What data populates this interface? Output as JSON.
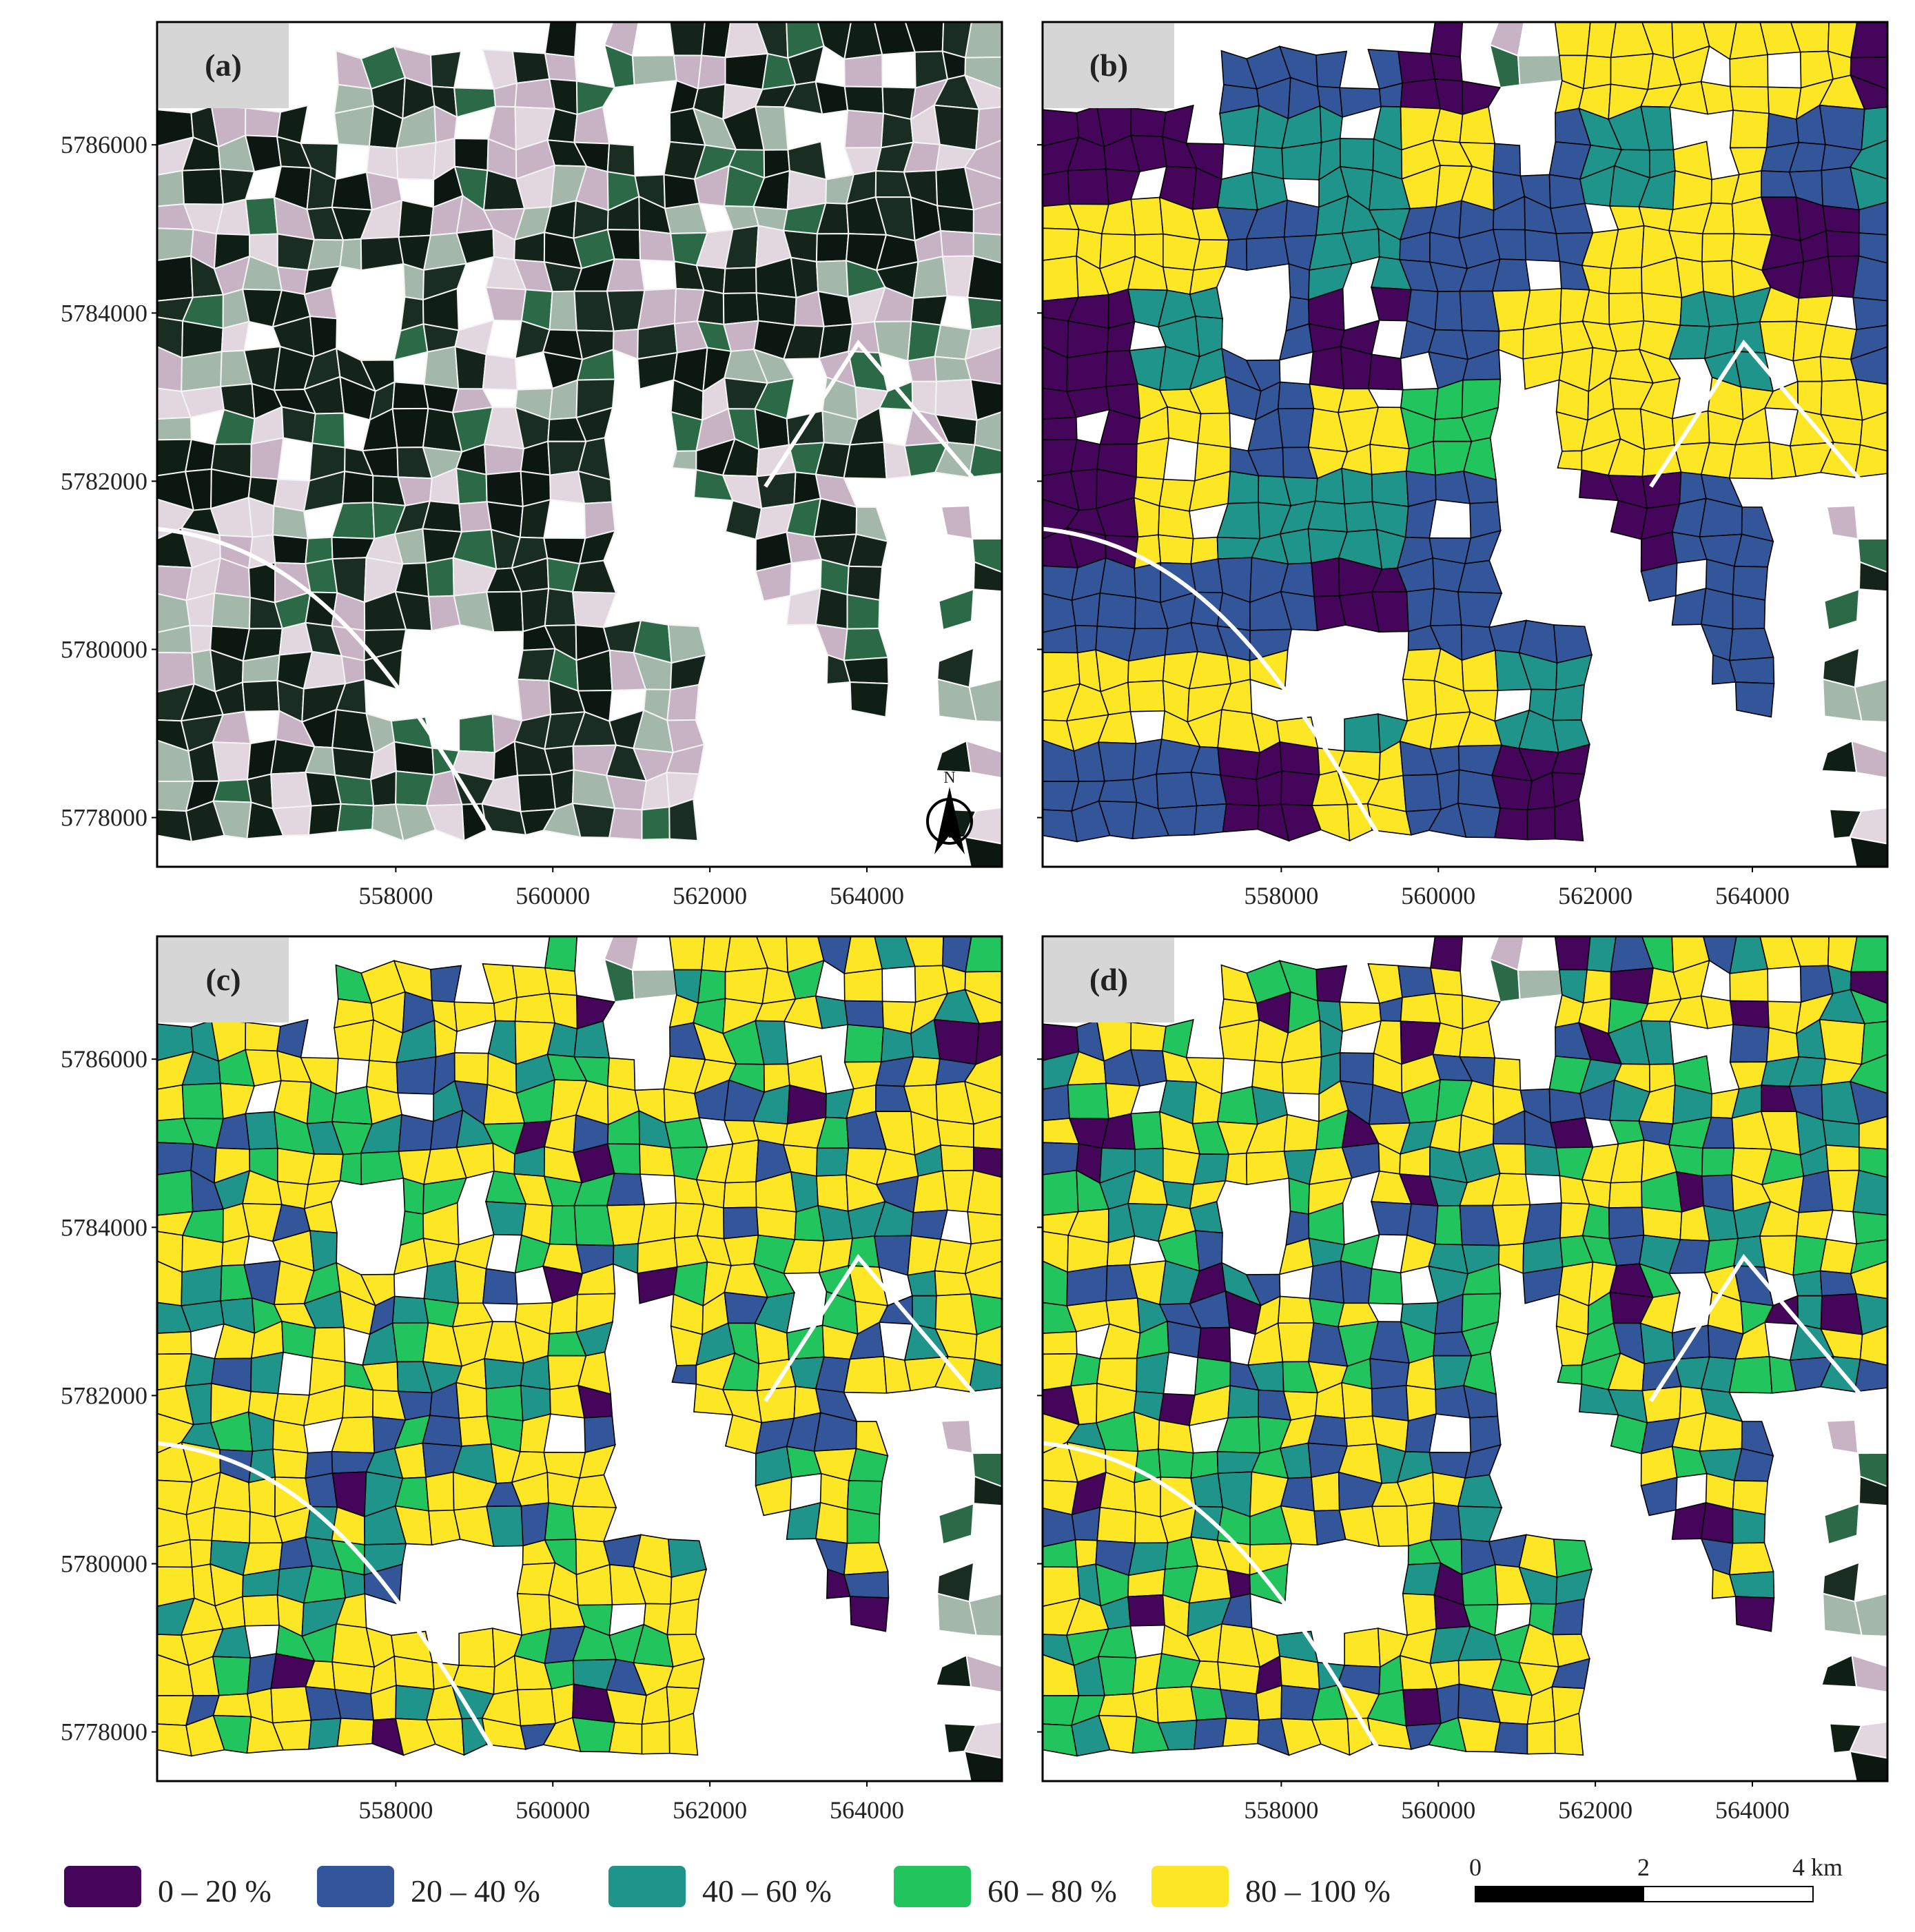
{
  "map": {
    "xlim": [
      554960,
      565720
    ],
    "ylim": [
      5777415,
      5787460
    ],
    "xticks": [
      558000,
      560000,
      562000,
      564000
    ],
    "yticks": [
      5778000,
      5780000,
      5782000,
      5784000,
      5786000
    ]
  },
  "panels": [
    {
      "label": "(a)"
    },
    {
      "label": "(b)"
    },
    {
      "label": "(c)"
    },
    {
      "label": "(d)"
    }
  ],
  "north_label": "N",
  "legend": [
    {
      "label": "0 – 20 %",
      "color": "#45055a"
    },
    {
      "label": "20 – 40 %",
      "color": "#33569a"
    },
    {
      "label": "40 – 60 %",
      "color": "#1f948a"
    },
    {
      "label": "60 – 80 %",
      "color": "#22c45e"
    },
    {
      "label": "80 – 100 %",
      "color": "#fde724"
    }
  ],
  "scale_bar": {
    "labels": [
      "0",
      "2",
      "4 km"
    ]
  }
}
